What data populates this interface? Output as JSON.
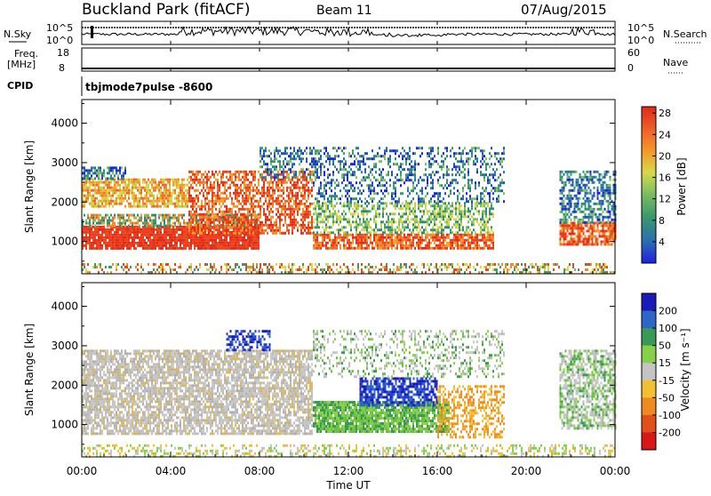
{
  "header": {
    "title": "Buckland Park (fitACF)",
    "beam": "Beam 11",
    "date": "07/Aug/2015"
  },
  "top_panels": {
    "nsky_label": "N.Sky",
    "nsky_ticks": [
      "10^5",
      "10^0"
    ],
    "nsearch_label": "N.Search",
    "nsearch_ticks": [
      "10^5",
      "10^0"
    ],
    "freq_label_1": "Freq.",
    "freq_label_2": "[MHz]",
    "freq_ticks": [
      "18",
      "8"
    ],
    "nave_label": "Nave",
    "nave_ticks": [
      "60",
      "0"
    ],
    "cpid_label": "CPID",
    "cpid_value": "tbjmode7pulse  -8600"
  },
  "chart_data": [
    {
      "type": "heatmap",
      "name": "power",
      "ylabel": "Slant Range [km]",
      "yticks": [
        "1000",
        "2000",
        "3000",
        "4000"
      ],
      "ylim": [
        180,
        4600
      ],
      "xlim": [
        "00:00",
        "24:00"
      ],
      "colorbar_label": "Power [dB]",
      "colorbar_ticks": [
        "4",
        "8",
        "12",
        "16",
        "20",
        "24",
        "28"
      ],
      "colorbar_colors": [
        "#1f1fe0",
        "#2a6fb0",
        "#3a9a6a",
        "#7fc060",
        "#d8d84a",
        "#f2a02a",
        "#ef6a2a",
        "#e02a1a"
      ]
    },
    {
      "type": "heatmap",
      "name": "velocity",
      "ylabel": "Slant Range [km]",
      "yticks": [
        "1000",
        "2000",
        "3000",
        "4000"
      ],
      "ylim": [
        180,
        4600
      ],
      "xlim": [
        "00:00",
        "24:00"
      ],
      "colorbar_label": "Velocity [m s⁻¹]",
      "colorbar_ticks": [
        "200",
        "100",
        "50",
        "15",
        "-15",
        "-50",
        "-100",
        "-200"
      ],
      "colorbar_colors": [
        "#1a1ab8",
        "#2d66c8",
        "#3a9a55",
        "#86d04a",
        "#c4c4c4",
        "#f2c030",
        "#ef8a20",
        "#e05018",
        "#d81818"
      ]
    }
  ],
  "xaxis": {
    "ticks": [
      "00:00",
      "04:00",
      "08:00",
      "12:00",
      "16:00",
      "20:00",
      "00:00"
    ],
    "label": "Time UT"
  }
}
